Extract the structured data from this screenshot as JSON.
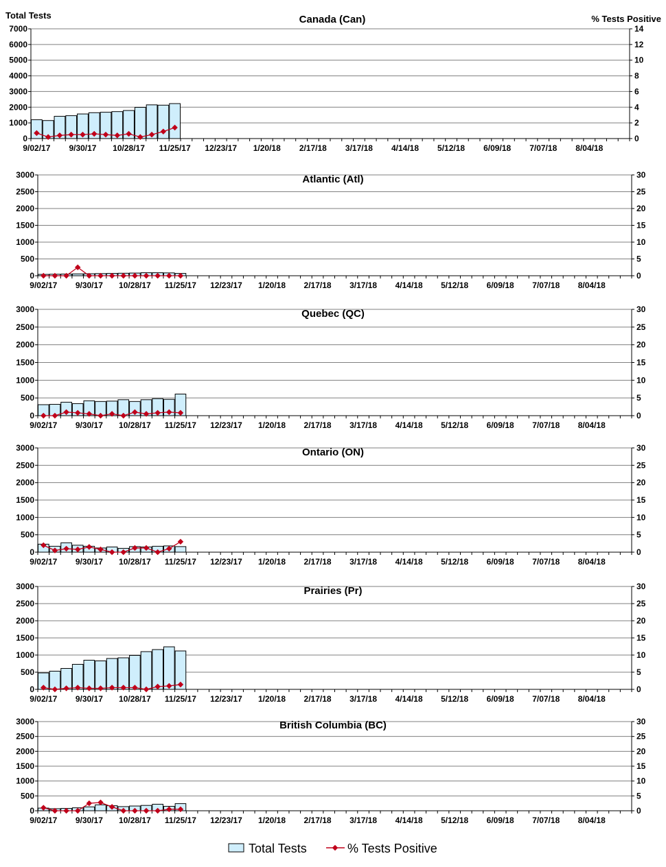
{
  "header": {
    "left_label": "Total Tests",
    "right_label": "% Tests Positive"
  },
  "legend": {
    "bar_label": "Total Tests",
    "line_label": "% Tests Positive"
  },
  "colors": {
    "bar_fill": "#cfeefc",
    "bar_stroke": "#000000",
    "line": "#c0001a",
    "grid": "#7f7f7f"
  },
  "chart_data": [
    {
      "type": "bar",
      "title": "Canada (Can)",
      "x_tick_labels": [
        "9/02/17",
        "9/30/17",
        "10/28/17",
        "11/25/17",
        "12/23/17",
        "1/20/18",
        "2/17/18",
        "3/17/18",
        "4/14/18",
        "5/12/18",
        "6/09/18",
        "7/07/18",
        "8/04/18"
      ],
      "y_left": {
        "min": 0,
        "max": 7000,
        "step": 1000
      },
      "y_right": {
        "min": 0,
        "max": 14,
        "step": 2
      },
      "series": [
        {
          "name": "Total Tests",
          "axis": "left",
          "values": [
            1200,
            1150,
            1420,
            1460,
            1570,
            1650,
            1680,
            1720,
            1790,
            1990,
            2150,
            2130,
            2230
          ]
        },
        {
          "name": "% Tests Positive",
          "axis": "right",
          "values": [
            0.7,
            0.2,
            0.4,
            0.5,
            0.5,
            0.6,
            0.5,
            0.4,
            0.6,
            0.2,
            0.5,
            0.9,
            1.4
          ]
        }
      ]
    },
    {
      "type": "bar",
      "title": "Atlantic (Atl)",
      "x_tick_labels": [
        "9/02/17",
        "9/30/17",
        "10/28/17",
        "11/25/17",
        "12/23/17",
        "1/20/18",
        "2/17/18",
        "3/17/18",
        "4/14/18",
        "5/12/18",
        "6/09/18",
        "7/07/18",
        "8/04/18"
      ],
      "y_left": {
        "min": 0,
        "max": 3000,
        "step": 500
      },
      "y_right": {
        "min": 0,
        "max": 30,
        "step": 5
      },
      "series": [
        {
          "name": "Total Tests",
          "axis": "left",
          "values": [
            40,
            45,
            50,
            55,
            60,
            65,
            70,
            75,
            80,
            90,
            90,
            85,
            70
          ]
        },
        {
          "name": "% Tests Positive",
          "axis": "right",
          "values": [
            0,
            0,
            0,
            2.5,
            0,
            0,
            0,
            0,
            0,
            0,
            0,
            0,
            0
          ]
        }
      ]
    },
    {
      "type": "bar",
      "title": "Quebec (QC)",
      "x_tick_labels": [
        "9/02/17",
        "9/30/17",
        "10/28/17",
        "11/25/17",
        "12/23/17",
        "1/20/18",
        "2/17/18",
        "3/17/18",
        "4/14/18",
        "5/12/18",
        "6/09/18",
        "7/07/18",
        "8/04/18"
      ],
      "y_left": {
        "min": 0,
        "max": 3000,
        "step": 500
      },
      "y_right": {
        "min": 0,
        "max": 30,
        "step": 5
      },
      "series": [
        {
          "name": "Total Tests",
          "axis": "left",
          "values": [
            310,
            320,
            380,
            340,
            420,
            400,
            410,
            450,
            400,
            450,
            480,
            460,
            610
          ]
        },
        {
          "name": "% Tests Positive",
          "axis": "right",
          "values": [
            0,
            0,
            1.0,
            0.8,
            0.5,
            0,
            0.5,
            0,
            1.0,
            0.5,
            0.8,
            1.0,
            0.8
          ]
        }
      ]
    },
    {
      "type": "bar",
      "title": "Ontario (ON)",
      "x_tick_labels": [
        "9/02/17",
        "9/30/17",
        "10/28/17",
        "11/25/17",
        "12/23/17",
        "1/20/18",
        "2/17/18",
        "3/17/18",
        "4/14/18",
        "5/12/18",
        "6/09/18",
        "7/07/18",
        "8/04/18"
      ],
      "y_left": {
        "min": 0,
        "max": 3000,
        "step": 500
      },
      "y_right": {
        "min": 0,
        "max": 30,
        "step": 5
      },
      "series": [
        {
          "name": "Total Tests",
          "axis": "left",
          "values": [
            230,
            170,
            270,
            200,
            170,
            120,
            150,
            110,
            160,
            150,
            170,
            180,
            160
          ]
        },
        {
          "name": "% Tests Positive",
          "axis": "right",
          "values": [
            2.0,
            0.5,
            1.0,
            0.8,
            1.5,
            0.8,
            0,
            0,
            1.2,
            1.2,
            0,
            1.0,
            3.0
          ]
        }
      ]
    },
    {
      "type": "bar",
      "title": "Prairies (Pr)",
      "x_tick_labels": [
        "9/02/17",
        "9/30/17",
        "10/28/17",
        "11/25/17",
        "12/23/17",
        "1/20/18",
        "2/17/18",
        "3/17/18",
        "4/14/18",
        "5/12/18",
        "6/09/18",
        "7/07/18",
        "8/04/18"
      ],
      "y_left": {
        "min": 0,
        "max": 3000,
        "step": 500
      },
      "y_right": {
        "min": 0,
        "max": 30,
        "step": 5
      },
      "series": [
        {
          "name": "Total Tests",
          "axis": "left",
          "values": [
            480,
            530,
            610,
            730,
            850,
            830,
            900,
            920,
            990,
            1100,
            1160,
            1240,
            1120
          ]
        },
        {
          "name": "% Tests Positive",
          "axis": "right",
          "values": [
            0.5,
            0,
            0.3,
            0.5,
            0.3,
            0.3,
            0.5,
            0.5,
            0.5,
            0,
            0.8,
            1.0,
            1.4
          ]
        }
      ]
    },
    {
      "type": "bar",
      "title": "British Columbia (BC)",
      "x_tick_labels": [
        "9/02/17",
        "9/30/17",
        "10/28/17",
        "11/25/17",
        "12/23/17",
        "1/20/18",
        "2/17/18",
        "3/17/18",
        "4/14/18",
        "5/12/18",
        "6/09/18",
        "7/07/18",
        "8/04/18"
      ],
      "y_left": {
        "min": 0,
        "max": 3000,
        "step": 500
      },
      "y_right": {
        "min": 0,
        "max": 30,
        "step": 5
      },
      "series": [
        {
          "name": "Total Tests",
          "axis": "left",
          "values": [
            90,
            70,
            80,
            100,
            130,
            200,
            170,
            140,
            160,
            180,
            220,
            150,
            240
          ]
        },
        {
          "name": "% Tests Positive",
          "axis": "right",
          "values": [
            1.0,
            0,
            0,
            0,
            2.5,
            2.8,
            1.3,
            0,
            0,
            0,
            0,
            0.5,
            0.5
          ]
        }
      ]
    }
  ]
}
